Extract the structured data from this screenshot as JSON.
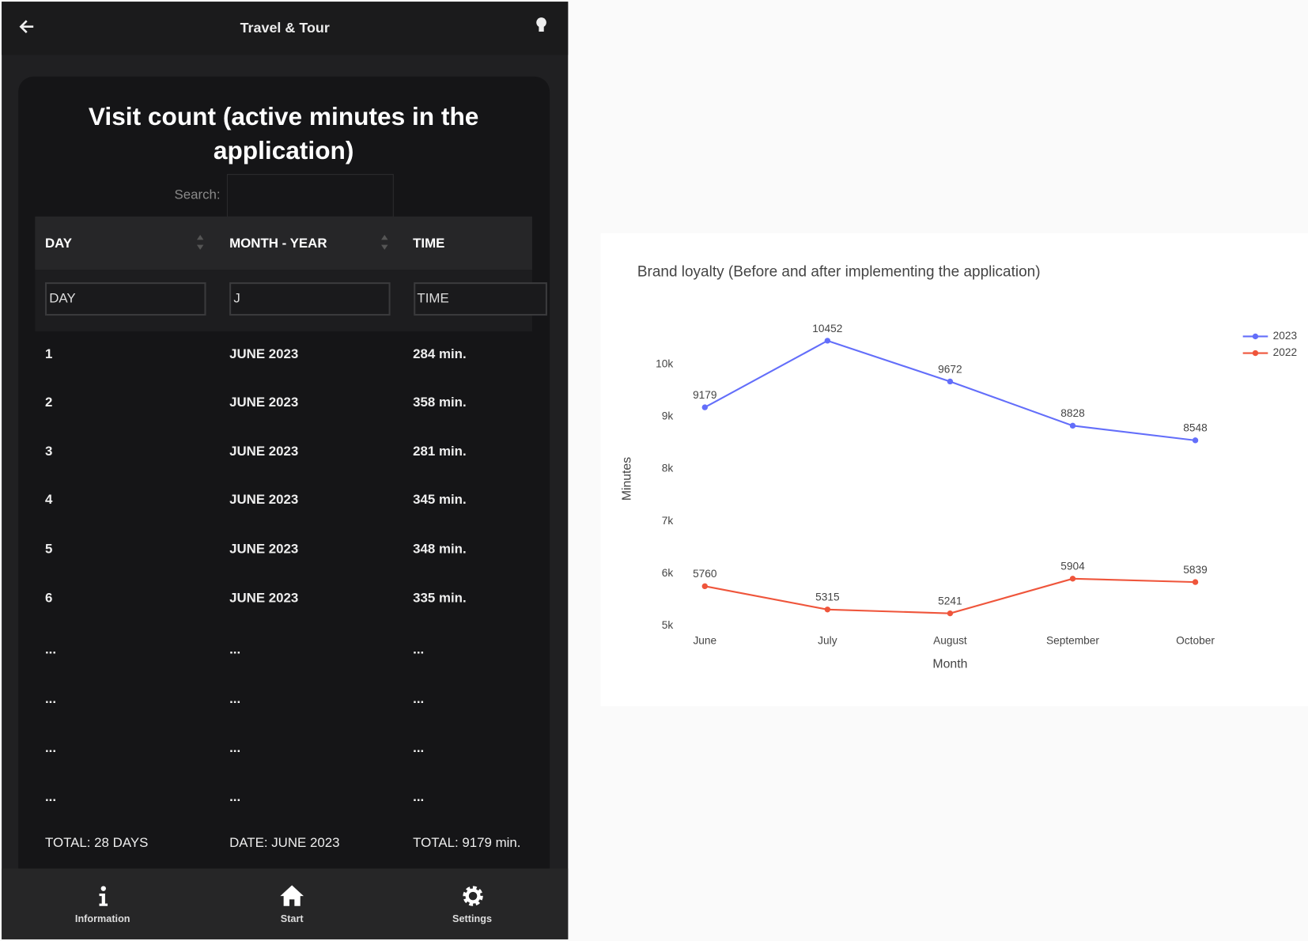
{
  "app": {
    "header_title": "Travel & Tour",
    "table": {
      "title": "Visit count (active minutes in the application)",
      "search_label": "Search:",
      "columns": [
        "DAY",
        "MONTH - YEAR",
        "TIME"
      ],
      "filters": [
        "DAY",
        "J",
        "TIME"
      ],
      "rows": [
        [
          "1",
          "JUNE 2023",
          "284 min."
        ],
        [
          "2",
          "JUNE 2023",
          "358 min."
        ],
        [
          "3",
          "JUNE 2023",
          "281 min."
        ],
        [
          "4",
          "JUNE 2023",
          "345 min."
        ],
        [
          "5",
          "JUNE 2023",
          "348 min."
        ],
        [
          "6",
          "JUNE 2023",
          "335 min."
        ],
        [
          "...",
          "...",
          "..."
        ],
        [
          "...",
          "...",
          "..."
        ],
        [
          "...",
          "...",
          "..."
        ],
        [
          "...",
          "...",
          "..."
        ]
      ],
      "footer": [
        "TOTAL: 28 DAYS",
        "DATE: JUNE 2023",
        "TOTAL: 9179 min."
      ]
    },
    "nav": [
      "Information",
      "Start",
      "Settings"
    ]
  },
  "chart_data": {
    "type": "line",
    "title": "Brand loyalty (Before and after implementing the application)",
    "x_label": "Month",
    "y_label": "Minutes",
    "categories": [
      "June",
      "July",
      "August",
      "September",
      "October"
    ],
    "series": [
      {
        "name": "2023",
        "color": "#636efa",
        "values": [
          9179,
          10452,
          9672,
          8828,
          8548
        ]
      },
      {
        "name": "2022",
        "color": "#ef553b",
        "values": [
          5760,
          5315,
          5241,
          5904,
          5839
        ]
      }
    ],
    "ylim": [
      4900,
      10900
    ],
    "yticks": [
      {
        "value": 5000,
        "label": "5k"
      },
      {
        "value": 6000,
        "label": "6k"
      },
      {
        "value": 7000,
        "label": "7k"
      },
      {
        "value": 8000,
        "label": "8k"
      },
      {
        "value": 9000,
        "label": "9k"
      },
      {
        "value": 10000,
        "label": "10k"
      }
    ],
    "grid": false,
    "legend": "top-right"
  }
}
